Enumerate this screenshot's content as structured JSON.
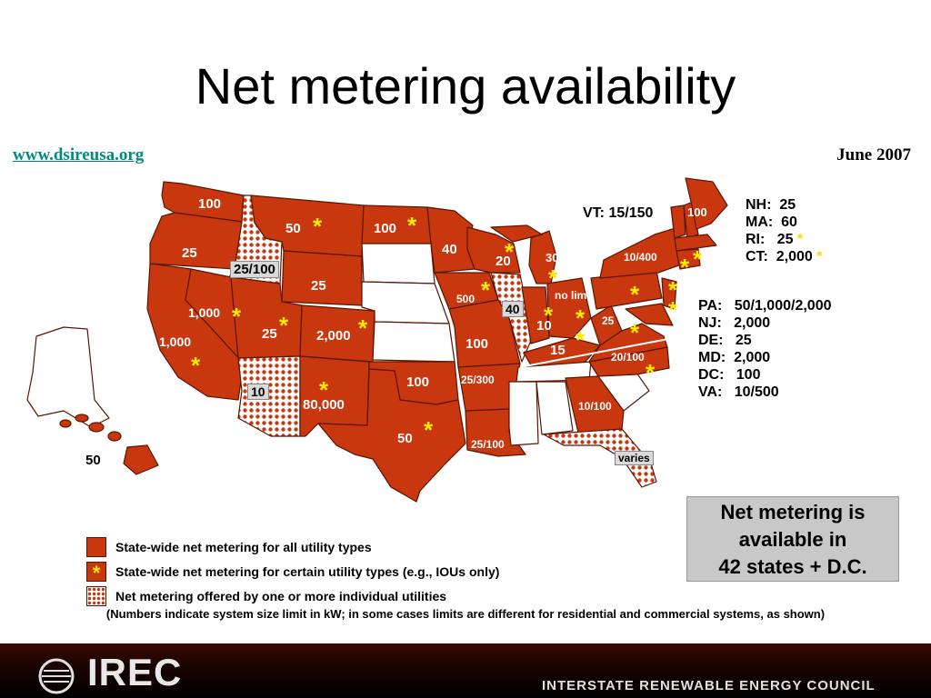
{
  "title": "Net metering availability",
  "source_url": "www.dsireusa.org",
  "date": "June 2007",
  "colors": {
    "statewide": "#c8370e",
    "border": "#5a1500",
    "star": "#ffeb00",
    "url": "#008a80"
  },
  "map_labels": {
    "wa": "100",
    "or": "25",
    "id": "25/100",
    "mt": "50",
    "nd": "100",
    "mn": "40",
    "wy": "25",
    "ca1": "1,000",
    "ca2": "1,000",
    "nv": "1,000",
    "ut": "25",
    "co": "2,000",
    "az": "10",
    "nm": "80,000",
    "ok": "100",
    "tx": "50",
    "ia": "500",
    "il": "40",
    "wi": "20",
    "mi": "30",
    "mo": "100",
    "ar": "25/300",
    "la": "25/100",
    "in": "10",
    "oh": "no limit",
    "ky": "15",
    "wv": "25",
    "nc": "20/100",
    "ga": "10/100",
    "fl": "varies",
    "me": "100",
    "ny": "10/400",
    "hi": "50"
  },
  "vt_label": "VT: 15/150",
  "ne_states": [
    {
      "state": "NH:",
      "value": "25",
      "star": false
    },
    {
      "state": "MA:",
      "value": "60",
      "star": false
    },
    {
      "state": "RI:",
      "value": "25",
      "star": true
    },
    {
      "state": "CT:",
      "value": "2,000",
      "star": true
    }
  ],
  "mid_atlantic": [
    {
      "state": "PA:",
      "value": "50/1,000/2,000"
    },
    {
      "state": "NJ:",
      "value": "2,000"
    },
    {
      "state": "DE:",
      "value": "25"
    },
    {
      "state": "MD:",
      "value": "2,000"
    },
    {
      "state": "DC:",
      "value": "100"
    },
    {
      "state": "VA:",
      "value": "10/500"
    }
  ],
  "star_char": "*",
  "callout": {
    "line1": "Net metering is",
    "line2": "available in",
    "line3": "42 states + D.C."
  },
  "legend": [
    {
      "label": "State-wide net metering for all utility types",
      "type": "solid"
    },
    {
      "label": "State-wide net metering for certain utility types (e.g., IOUs only)",
      "type": "star"
    },
    {
      "label": "Net metering offered by one or more individual utilities",
      "type": "pattern"
    }
  ],
  "note": "(Numbers indicate system size limit in kW; in some cases limits are different for residential and commercial systems, as shown)",
  "footer": {
    "logo_text": "IREC",
    "council": "INTERSTATE RENEWABLE ENERGY COUNCIL"
  }
}
